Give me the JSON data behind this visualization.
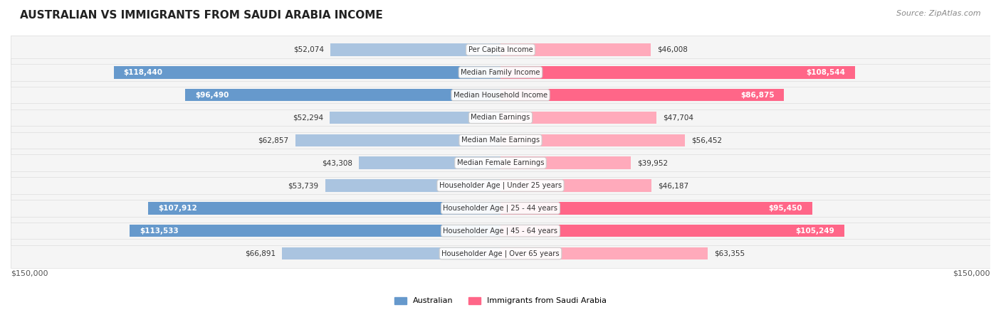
{
  "title": "AUSTRALIAN VS IMMIGRANTS FROM SAUDI ARABIA INCOME",
  "source": "Source: ZipAtlas.com",
  "categories": [
    "Per Capita Income",
    "Median Family Income",
    "Median Household Income",
    "Median Earnings",
    "Median Male Earnings",
    "Median Female Earnings",
    "Householder Age | Under 25 years",
    "Householder Age | 25 - 44 years",
    "Householder Age | 45 - 64 years",
    "Householder Age | Over 65 years"
  ],
  "australian_values": [
    52074,
    118440,
    96490,
    52294,
    62857,
    43308,
    53739,
    107912,
    113533,
    66891
  ],
  "immigrant_values": [
    46008,
    108544,
    86875,
    47704,
    56452,
    39952,
    46187,
    95450,
    105249,
    63355
  ],
  "max_value": 150000,
  "australian_color_dark": "#6699cc",
  "australian_color_light": "#aac4e0",
  "immigrant_color_dark": "#ff6688",
  "immigrant_color_light": "#ffaabb",
  "bar_height": 0.55,
  "threshold_label_inside": 70000
}
